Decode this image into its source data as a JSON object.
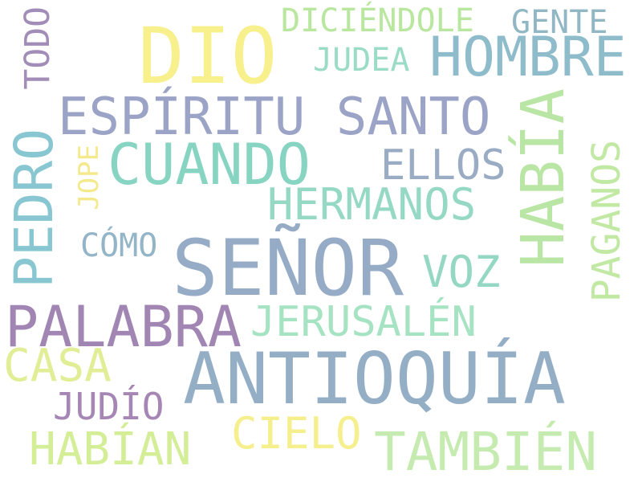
{
  "words": [
    {
      "text": "DIO",
      "color": "#f8ef8d"
    },
    {
      "text": "DICIÉNDOLE",
      "color": "#b9e79f"
    },
    {
      "text": "GENTE",
      "color": "#91b7c4"
    },
    {
      "text": "JUDEA",
      "color": "#9bdcc6"
    },
    {
      "text": "HOMBRE",
      "color": "#8ebccb"
    },
    {
      "text": "TODO",
      "color": "#a18db8"
    },
    {
      "text": "ESPÍRITU SANTO",
      "color": "#9ba4c6"
    },
    {
      "text": "HABÍA",
      "color": "#b9e6a4"
    },
    {
      "text": "CUANDO",
      "color": "#88d4c2"
    },
    {
      "text": "ELLOS",
      "color": "#9aabc4"
    },
    {
      "text": "PEDRO",
      "color": "#88c7d1"
    },
    {
      "text": "JOPE",
      "color": "#f4e98c"
    },
    {
      "text": "PAGANOS",
      "color": "#c1e9a4"
    },
    {
      "text": "HERMANOS",
      "color": "#95d9c4"
    },
    {
      "text": "CÓMO",
      "color": "#93b5c7"
    },
    {
      "text": "SEÑOR",
      "color": "#96acc6"
    },
    {
      "text": "VOZ",
      "color": "#94d7c3"
    },
    {
      "text": "PALABRA",
      "color": "#a185b3"
    },
    {
      "text": "JERUSALÉN",
      "color": "#a6e3c3"
    },
    {
      "text": "CASA",
      "color": "#e1ee95"
    },
    {
      "text": "ANTIOQUÍA",
      "color": "#94aec6"
    },
    {
      "text": "JUDÍO",
      "color": "#a586b4"
    },
    {
      "text": "CIELO",
      "color": "#f6ef8e"
    },
    {
      "text": "HABÍAN",
      "color": "#d4ed97"
    },
    {
      "text": "TAMBIÉN",
      "color": "#c6ebb0"
    }
  ]
}
